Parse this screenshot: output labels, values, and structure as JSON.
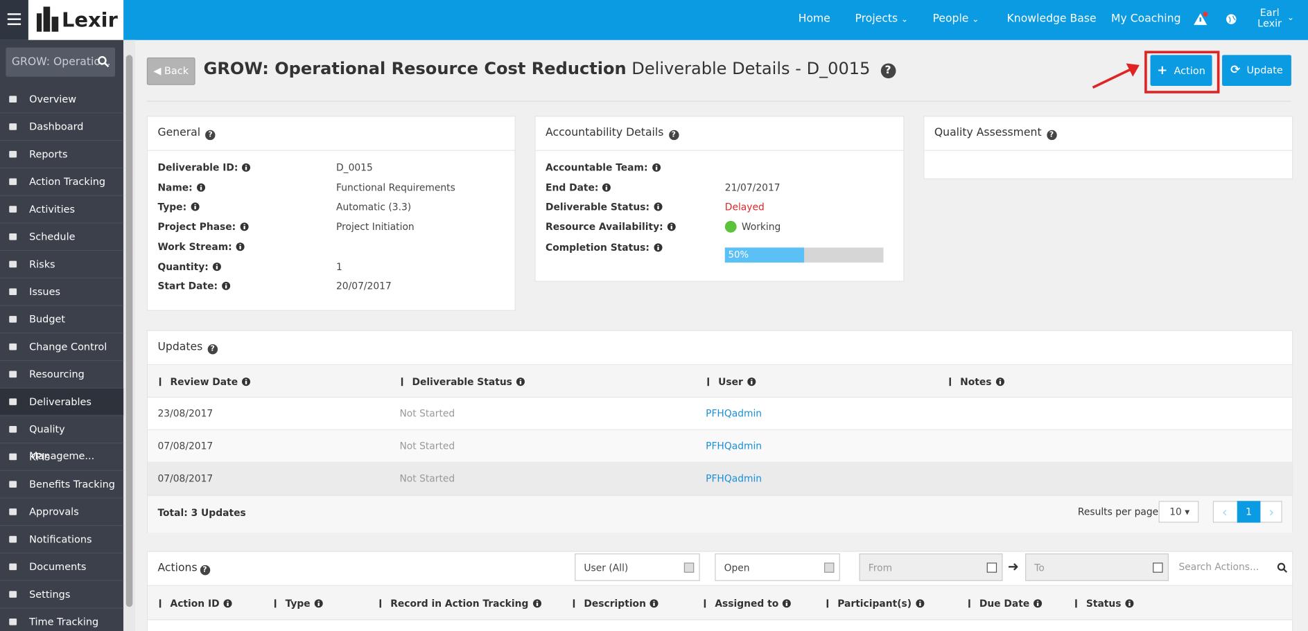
{
  "header": {
    "logo": "Lexir",
    "search": "GROW: Operatio...",
    "nav": [
      "Home",
      "Projects",
      "People",
      "Knowledge Base",
      "My Coaching"
    ],
    "user": "Earl Lexir"
  },
  "sidebar": [
    "Overview",
    "Dashboard",
    "Reports",
    "Action Tracking",
    "Activities",
    "Schedule",
    "Risks",
    "Issues",
    "Budget",
    "Change Control",
    "Resourcing",
    "Deliverables",
    "Quality Manageme...",
    "KPIs",
    "Benefits Tracking",
    "Approvals",
    "Notifications",
    "Documents",
    "Settings",
    "Time Tracking"
  ],
  "page": {
    "back": "Back",
    "title": "GROW: Operational Resource Cost Reduction",
    "subtitle": "Deliverable Details - D_0015",
    "buttons": [
      "Action",
      "Update"
    ]
  },
  "general": {
    "title": "General",
    "fields": [
      {
        "label": "Deliverable ID:",
        "value": "D_0015"
      },
      {
        "label": "Name:",
        "value": "Functional Requirements"
      },
      {
        "label": "Type:",
        "value": "Automatic (3.3)"
      },
      {
        "label": "Project Phase:",
        "value": "Project Initiation"
      },
      {
        "label": "Work Stream:"
      },
      {
        "label": "Quantity:",
        "value": "1"
      },
      {
        "label": "Start Date:",
        "value": "20/07/2017"
      }
    ]
  },
  "accountability": {
    "title": "Accountability Details",
    "fields": [
      {
        "label": "Accountable Team:"
      },
      {
        "label": "End Date:",
        "value": "21/07/2017"
      },
      {
        "label": "Deliverable Status:",
        "value": "Delayed"
      },
      {
        "label": "Resource Availability:",
        "value": "Working"
      }
    ],
    "completion": {
      "label": "Completion Status:",
      "value": 50,
      "value_label": "50%"
    }
  },
  "quality": {
    "title": "Quality Assessment"
  },
  "updates": {
    "title": "Updates",
    "columns": [
      "Review Date",
      "Deliverable Status",
      "User",
      "Notes"
    ],
    "rows": [
      [
        "23/08/2017",
        "Not Started",
        "PFHQadmin"
      ],
      [
        "07/08/2017",
        "Not Started",
        "PFHQadmin"
      ],
      [
        "07/08/2017",
        "Not Started",
        "PFHQadmin"
      ]
    ],
    "total": "Total: 3 Updates",
    "results_per_page": "Results per page:",
    "page_size": 10,
    "page": 1
  },
  "actions": {
    "title": "Actions",
    "filters": [
      "User (All)",
      "Open"
    ],
    "from": "From",
    "to": "To",
    "search": "Search Actions...",
    "columns": [
      "Action ID",
      "Type",
      "Record in Action Tracking",
      "Description",
      "Assigned to",
      "Participant(s)",
      "Due Date",
      "Status"
    ]
  }
}
